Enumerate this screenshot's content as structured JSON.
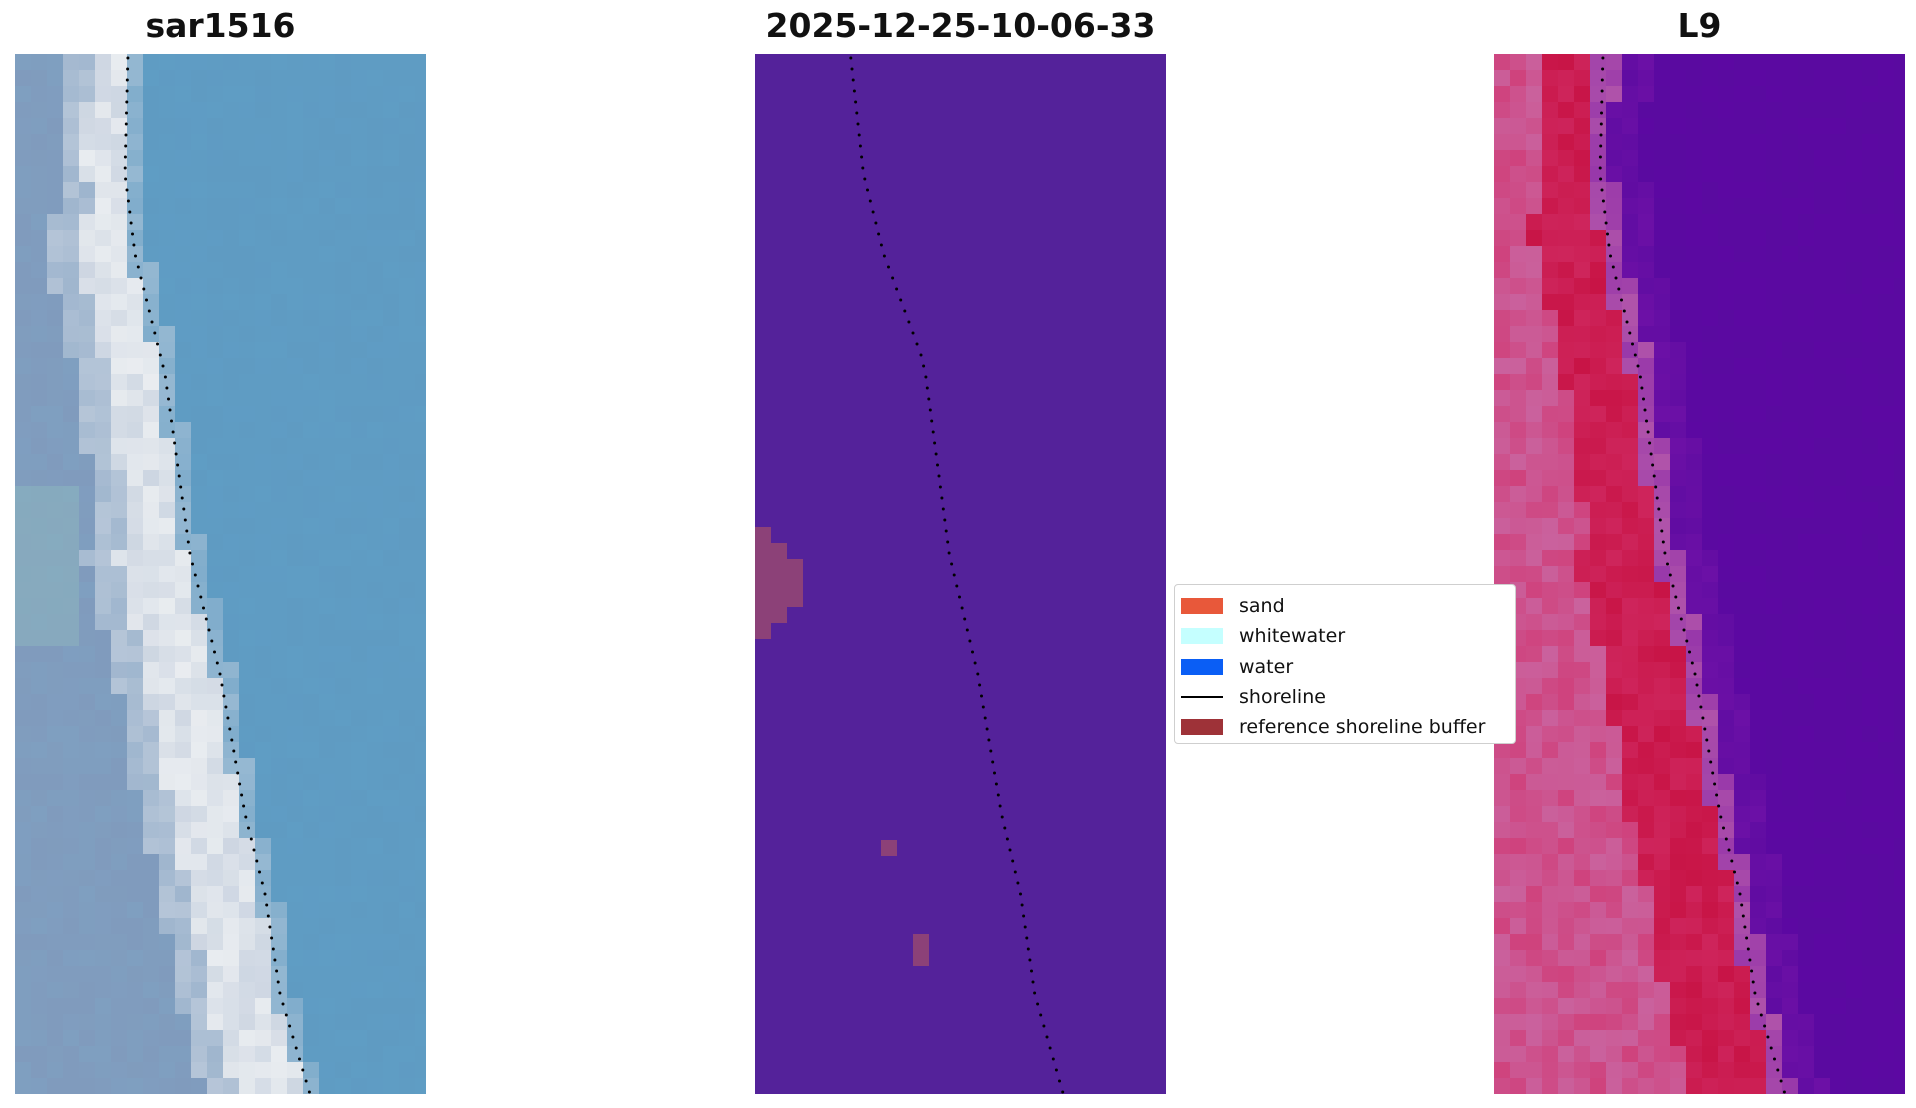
{
  "panels": [
    {
      "title": "sar1516",
      "kind": "rgb"
    },
    {
      "title": "2025-12-25-10-06-33",
      "kind": "classified"
    },
    {
      "title": "L9",
      "kind": "false-color"
    }
  ],
  "legend": {
    "items": [
      {
        "label": "sand",
        "color": "#e8583a",
        "type": "patch"
      },
      {
        "label": "whitewater",
        "color": "#c5ffff",
        "type": "patch"
      },
      {
        "label": "water",
        "color": "#0a5ef5",
        "type": "patch"
      },
      {
        "label": "shoreline",
        "color": "#000000",
        "type": "line"
      },
      {
        "label": "reference shoreline buffer",
        "color": "#9e3238",
        "type": "patch"
      }
    ]
  },
  "colors": {
    "rgb_water": "#5f9bc2",
    "rgb_land": "#7f9fc0",
    "classified_background": "#54229a",
    "classified_patch": "#8c4178",
    "false_color_water": "#5a0aa0",
    "false_color_land": "#d2306a"
  }
}
